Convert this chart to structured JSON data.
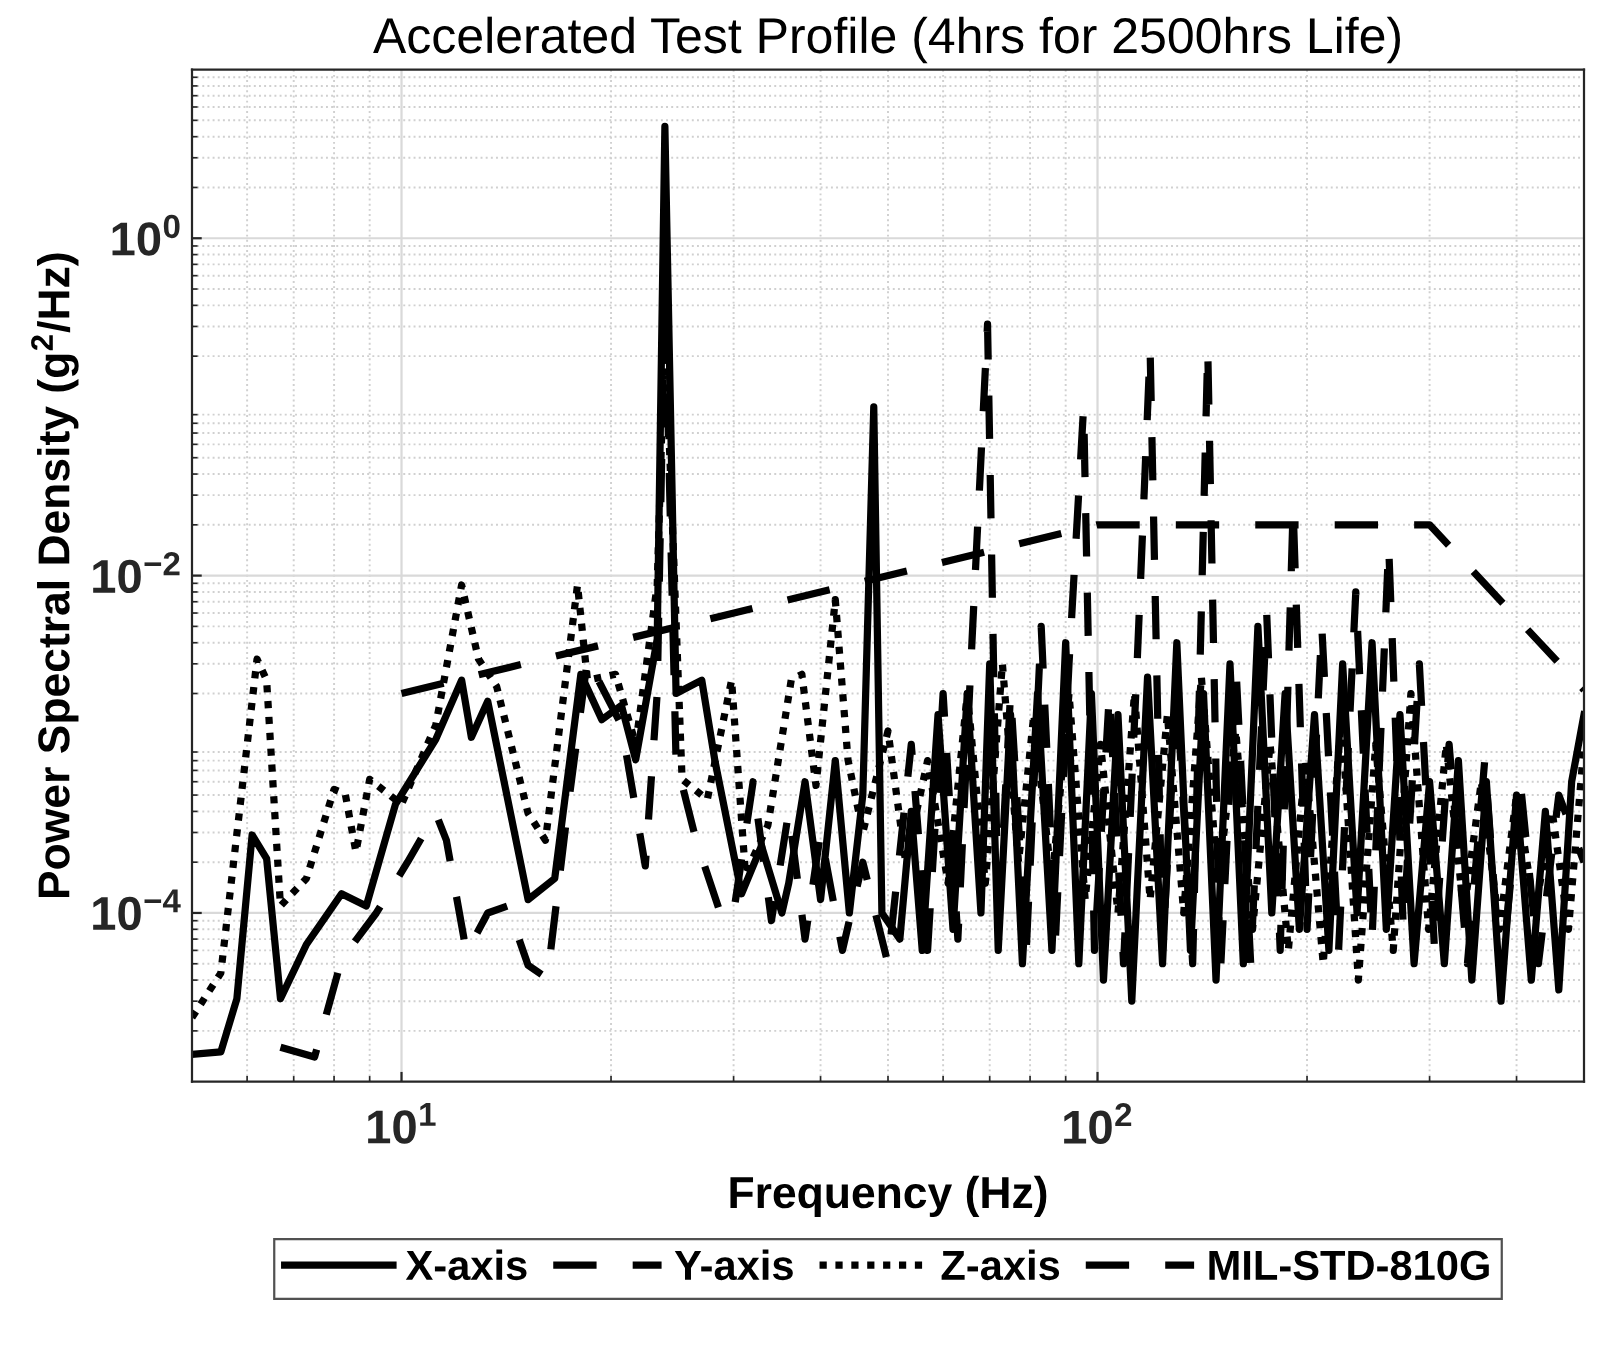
{
  "chart_data": {
    "type": "line",
    "title": "Accelerated Test Profile (4hrs for 2500hrs Life)",
    "xlabel": "Frequency (Hz)",
    "ylabel": "Power Spectral Density (g$^{2}$/Hz)",
    "log": "xy",
    "xlim": [
      5,
      500
    ],
    "ylim": [
      1e-05,
      10
    ],
    "xticks": [
      {
        "value": 10,
        "label": "10$^{1}$"
      },
      {
        "value": 100,
        "label": "10$^{2}$"
      }
    ],
    "yticks": [
      {
        "value": 0.0001,
        "label": "10$^{−4}$"
      },
      {
        "value": 0.01,
        "label": "10$^{−2}$"
      },
      {
        "value": 1,
        "label": "10$^{0}$"
      }
    ],
    "grid": true,
    "legend": "bottom",
    "series": [
      {
        "name": "X-axis",
        "color": "#000000",
        "line_style": "solid",
        "x": [
          5.0,
          5.5,
          5.8,
          6.1,
          6.4,
          6.7,
          7.3,
          8.2,
          8.9,
          9.8,
          11.2,
          12.2,
          12.6,
          13.3,
          15.2,
          16.6,
          18.1,
          19.4,
          20.7,
          21.7,
          23.3,
          23.9,
          24.8,
          27,
          28.2,
          30.8,
          32.9,
          35.2,
          36,
          38,
          40,
          42,
          44,
          46,
          47.7,
          49,
          52,
          54,
          56,
          59,
          62,
          65,
          68,
          70,
          72,
          75,
          78,
          82,
          86,
          90,
          94,
          98,
          102,
          107,
          112,
          118,
          124,
          130,
          136,
          142,
          148,
          155,
          162,
          170,
          178,
          186,
          195,
          205,
          215,
          225,
          236,
          248,
          260,
          272,
          285,
          300,
          315,
          330,
          345,
          362,
          380,
          400,
          420,
          440,
          460,
          480,
          500
        ],
        "values": [
          1.45e-05,
          1.5e-05,
          3.1e-05,
          0.00029,
          0.00021,
          3.1e-05,
          6.5e-05,
          0.00013,
          0.00011,
          0.00044,
          0.00107,
          0.0024,
          0.0011,
          0.0018,
          0.00012,
          0.00016,
          0.0026,
          0.0014,
          0.0017,
          0.00081,
          0.0042,
          4.6,
          0.002,
          0.0024,
          0.0008,
          0.00013,
          0.00025,
          0.0001,
          0.00015,
          0.0006,
          0.00012,
          0.0008,
          0.0001,
          0.0005,
          0.1,
          0.0001,
          7e-05,
          0.0004,
          6e-05,
          0.0015,
          8e-05,
          0.002,
          0.0001,
          0.003,
          6e-05,
          0.0015,
          5e-05,
          0.002,
          6e-05,
          0.004,
          5e-05,
          0.002,
          4e-05,
          0.0015,
          3e-05,
          0.0025,
          5e-05,
          0.004,
          6e-05,
          0.002,
          4e-05,
          0.003,
          5e-05,
          0.005,
          0.0001,
          0.002,
          8e-05,
          0.0015,
          6e-05,
          0.003,
          0.0001,
          0.004,
          8e-05,
          0.0015,
          5e-05,
          0.0006,
          5e-05,
          0.0008,
          4e-05,
          0.0006,
          3e-05,
          0.0005,
          4e-05,
          0.0004,
          3.5e-05,
          0.0006,
          0.0015
        ]
      },
      {
        "name": "Y-axis",
        "color": "#000000",
        "line_style": "dashed",
        "x": [
          6.7,
          7.5,
          8.2,
          9.2,
          10.2,
          11.2,
          11.6,
          12.4,
          13.3,
          14.2,
          15.2,
          16.2,
          17.3,
          18.5,
          20.7,
          22.4,
          23.3,
          23.9,
          24.8,
          26.5,
          28.9,
          30,
          32,
          34,
          36,
          38,
          40,
          43,
          46,
          50,
          54,
          57,
          60,
          63,
          66,
          69.5,
          72,
          75,
          79,
          83,
          87,
          91,
          95.5,
          99,
          104,
          109,
          114,
          119,
          124,
          130,
          137,
          144,
          150,
          158,
          166,
          175,
          183,
          191,
          200,
          210,
          222,
          235,
          248,
          262,
          275,
          290,
          305,
          320,
          340,
          360,
          380,
          405,
          430,
          460,
          500
        ],
        "values": [
          1.6e-05,
          1.4e-05,
          5.3e-05,
          0.0001,
          0.0002,
          0.00039,
          0.00027,
          5.8e-05,
          0.0001,
          0.00011,
          4.9e-05,
          4.1e-05,
          0.00039,
          0.0032,
          0.0013,
          0.00019,
          0.002,
          0.5,
          0.0008,
          0.00027,
          9.2e-05,
          0.0001,
          0.0006,
          9e-05,
          0.0004,
          7e-05,
          0.0003,
          6e-05,
          0.0002,
          5e-05,
          0.001,
          6e-05,
          0.002,
          7e-05,
          0.004,
          0.31,
          8e-05,
          0.002,
          6e-05,
          0.005,
          7e-05,
          0.003,
          0.1,
          6e-05,
          0.002,
          5e-05,
          0.003,
          0.22,
          6e-05,
          0.002,
          5e-05,
          0.22,
          4e-05,
          0.003,
          5e-05,
          0.006,
          6e-05,
          0.025,
          8e-05,
          0.005,
          6e-05,
          0.008,
          7e-05,
          0.015,
          8e-05,
          0.003,
          6e-05,
          0.001,
          5e-05,
          0.0008,
          4e-05,
          0.0006,
          5e-05,
          0.0005,
          0.0002
        ]
      },
      {
        "name": "Z-axis",
        "color": "#000000",
        "line_style": "dotted",
        "x": [
          5.0,
          5.5,
          6.2,
          6.4,
          6.7,
          7.3,
          8.0,
          8.3,
          8.6,
          9.0,
          10,
          11.2,
          12.2,
          12.9,
          13.7,
          15.2,
          16.1,
          17.9,
          18.5,
          20.3,
          21.7,
          23.3,
          23.9,
          25.3,
          27.5,
          29.8,
          31.2,
          33.6,
          36.3,
          37.6,
          39.4,
          42,
          43.8,
          46,
          50,
          53,
          57,
          61,
          65,
          69,
          73,
          77,
          81,
          86,
          91,
          96,
          101,
          107,
          113,
          119,
          126,
          133,
          141,
          149,
          158,
          167,
          177,
          188,
          199,
          211,
          224,
          237,
          251,
          266,
          282,
          299,
          317,
          336,
          356,
          378,
          400,
          425,
          450,
          475,
          500
        ],
        "values": [
          2.4e-05,
          4.4e-05,
          0.0032,
          0.0024,
          0.00011,
          0.00016,
          0.00054,
          0.00051,
          0.00023,
          0.00062,
          0.00044,
          0.0013,
          0.0088,
          0.0032,
          0.0022,
          0.00039,
          0.00027,
          0.0088,
          0.0024,
          0.0026,
          0.001,
          0.0088,
          0.3,
          0.00062,
          0.00047,
          0.0024,
          0.00017,
          0.00033,
          0.0024,
          0.0026,
          0.00057,
          0.0072,
          0.00081,
          0.0003,
          0.0012,
          0.0002,
          0.0008,
          0.00015,
          0.002,
          0.00015,
          0.003,
          0.0002,
          0.0015,
          0.00015,
          0.002,
          0.00012,
          0.001,
          0.0001,
          0.002,
          0.00012,
          0.0015,
          0.0001,
          0.0025,
          0.00015,
          0.0012,
          8e-05,
          0.001,
          6e-05,
          0.0008,
          5e-05,
          0.0015,
          4e-05,
          0.001,
          6e-05,
          0.002,
          8e-05,
          0.001,
          0.0001,
          0.0006,
          8e-05,
          0.0005,
          0.0001,
          0.0004,
          8e-05,
          0.001
        ]
      },
      {
        "name": "MIL-STD-810G",
        "color": "#000000",
        "line_style": "dashed",
        "x": [
          10,
          100,
          300,
          500
        ],
        "values": [
          0.002,
          0.02,
          0.02,
          0.0021
        ]
      }
    ]
  }
}
